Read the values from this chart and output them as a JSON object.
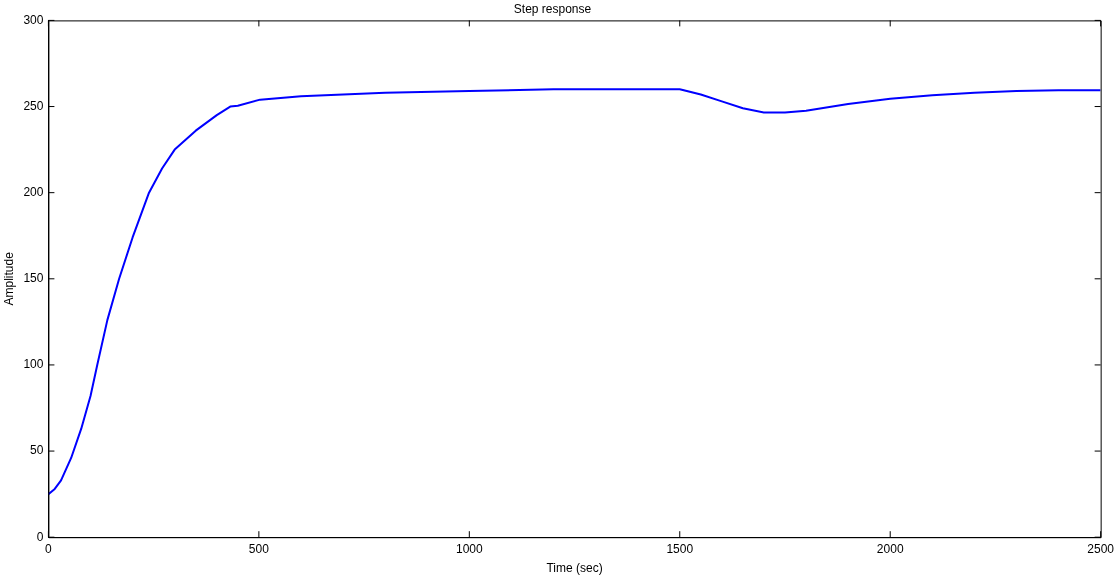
{
  "chart_data": {
    "type": "line",
    "title": "Step response",
    "xlabel": "Time (sec)",
    "ylabel": "Amplitude",
    "series": [
      {
        "color": "#0000ff",
        "x": [
          0,
          15,
          30,
          54,
          78,
          100,
          116,
          140,
          168,
          200,
          239,
          270,
          300,
          350,
          400,
          432,
          450,
          503,
          600,
          800,
          1000,
          1200,
          1500,
          1550,
          1600,
          1650,
          1700,
          1750,
          1800,
          1900,
          2000,
          2100,
          2200,
          2300,
          2400,
          2500
        ],
        "values": [
          25,
          28,
          33,
          46,
          63,
          82,
          100,
          126,
          150,
          174,
          200,
          214,
          225,
          236,
          245,
          250,
          250.5,
          254,
          256,
          258,
          259,
          260,
          260,
          257,
          253,
          249,
          246.5,
          246.5,
          247.5,
          251.5,
          254.5,
          256.5,
          258,
          259,
          259.5,
          259.5
        ]
      }
    ],
    "xlim": [
      0,
      2500
    ],
    "xticks": [
      0,
      500,
      1000,
      1500,
      2000,
      2500
    ],
    "ylim": [
      0,
      300
    ],
    "yticks": [
      0,
      50,
      100,
      150,
      200,
      250,
      300
    ],
    "grid": false,
    "legend": false,
    "marker": "none",
    "line_style": "solid"
  }
}
